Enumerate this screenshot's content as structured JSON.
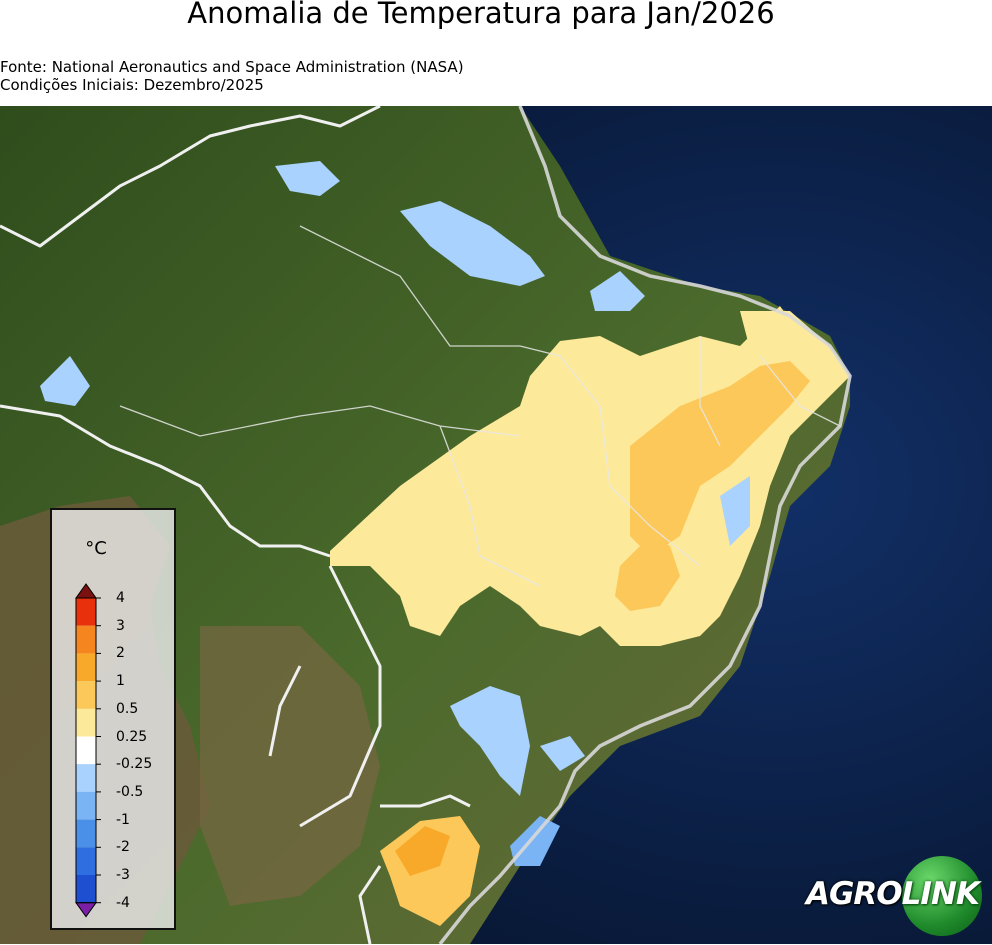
{
  "header": {
    "title": "Anomalia de Temperatura para Jan/2026",
    "source_line": "Fonte: National Aeronautics and Space Administration (NASA)",
    "conditions_line": "Condições Iniciais: Dezembro/2025"
  },
  "legend": {
    "unit": "°C",
    "ticks": [
      "4",
      "3",
      "2",
      "1",
      "0.5",
      "0.25",
      "-0.25",
      "-0.5",
      "-1",
      "-2",
      "-3",
      "-4"
    ],
    "colors": {
      "above_3": "#e8300d",
      "2_to_3": "#f5861f",
      "1_to_2": "#f9a92a",
      "0.5_to_1": "#fcc85a",
      "0.25_to_0.5": "#fde99a",
      "neutral": "#ffffff",
      "-0.5_to_-0.25": "#a9d2ff",
      "-1_to_-0.5": "#7ab4f5",
      "-2_to_-1": "#4a8fe8",
      "-3_to_-2": "#2e6ee0",
      "-4_to_-3": "#1d4fd0",
      "below_-4": "#7a1fa6"
    }
  },
  "map": {
    "ocean_color": "#0b1b3f",
    "land_color": "#3d5a24",
    "dry_land_color": "#6e6040",
    "border_color": "#f2f2f2"
  },
  "logo": {
    "part1": "AGRO",
    "part2": "LINK"
  }
}
